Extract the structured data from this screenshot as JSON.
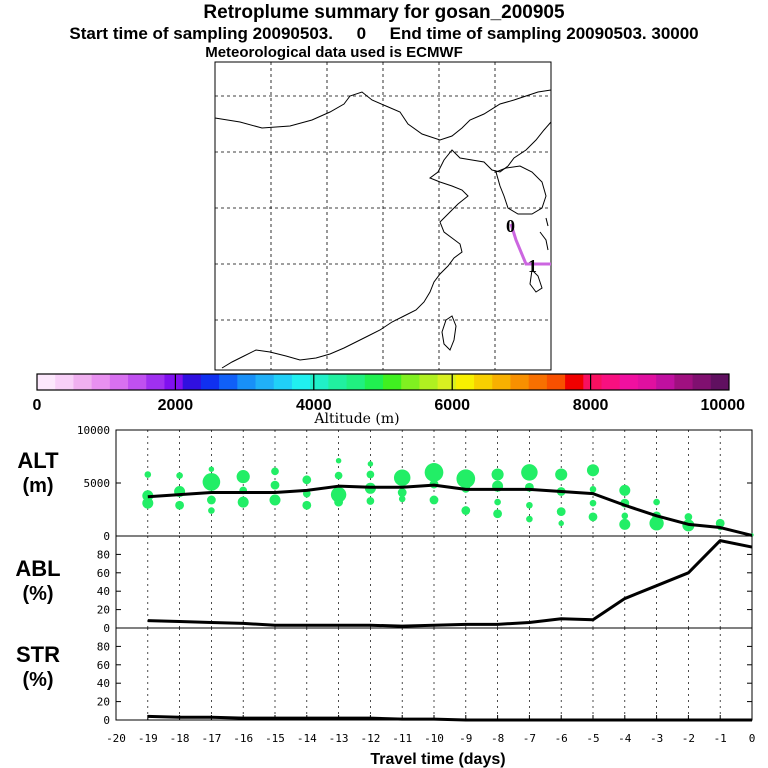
{
  "header": {
    "title": "Retroplume summary for gosan_200905",
    "sampling_line": "Start time of sampling 20090503.     0     End time of sampling 20090503. 30000",
    "met_line": "Meteorological data used is ECMWF"
  },
  "map": {
    "trajectory_labels": [
      "0",
      "1"
    ],
    "trajectory_color": "#cc66e0"
  },
  "colorbar": {
    "label": "Altitude (m)",
    "ticks": [
      "0",
      "2000",
      "4000",
      "6000",
      "8000",
      "10000"
    ],
    "colors": [
      "#fce8fc",
      "#f8d0f8",
      "#f0b0f0",
      "#e890f0",
      "#d870f0",
      "#c050f0",
      "#a030f0",
      "#8010f0",
      "#3010e0",
      "#1030f0",
      "#1060f8",
      "#1890f8",
      "#20b0f8",
      "#20d0f8",
      "#20f0f0",
      "#20f0c8",
      "#20f0a0",
      "#20f080",
      "#20f050",
      "#40f020",
      "#80f020",
      "#b0f020",
      "#d8f020",
      "#f8f000",
      "#f8d000",
      "#f8b000",
      "#f89000",
      "#f87000",
      "#f85000",
      "#f00000",
      "#f81060",
      "#f81080",
      "#f010a0",
      "#e010a0",
      "#c010a0",
      "#a01080",
      "#801070",
      "#601060"
    ]
  },
  "chart_data": [
    {
      "type": "line",
      "panel": "ALT",
      "ylabel": "ALT\n(m)",
      "ylabel_line1": "ALT",
      "ylabel_line2": "(m)",
      "ylim": [
        0,
        10000
      ],
      "yticks": [
        "0",
        "5000",
        "10000"
      ],
      "x": [
        -19,
        -18,
        -17,
        -16,
        -15,
        -14,
        -13,
        -12,
        -11,
        -10,
        -9,
        -8,
        -7,
        -6,
        -5,
        -4,
        -3,
        -2,
        -1,
        0
      ],
      "series": [
        {
          "name": "mean altitude",
          "values": [
            3700,
            3900,
            4100,
            4100,
            4100,
            4300,
            4700,
            4600,
            4600,
            4800,
            4400,
            4400,
            4400,
            4200,
            4000,
            2900,
            1900,
            1100,
            800,
            50
          ]
        }
      ],
      "scatter": {
        "color": "#22ee66",
        "points": [
          [
            -19,
            5800,
            0.6
          ],
          [
            -19,
            3800,
            1.0
          ],
          [
            -19,
            3100,
            1.0
          ],
          [
            -18,
            5700,
            0.6
          ],
          [
            -18,
            4200,
            1.0
          ],
          [
            -18,
            2900,
            0.8
          ],
          [
            -17,
            6300,
            0.5
          ],
          [
            -17,
            5100,
            1.6
          ],
          [
            -17,
            3400,
            0.8
          ],
          [
            -17,
            2400,
            0.6
          ],
          [
            -16,
            5600,
            1.2
          ],
          [
            -16,
            4300,
            0.7
          ],
          [
            -16,
            3200,
            1.0
          ],
          [
            -15,
            6100,
            0.7
          ],
          [
            -15,
            4800,
            0.8
          ],
          [
            -15,
            3400,
            1.0
          ],
          [
            -14,
            5300,
            0.8
          ],
          [
            -14,
            4000,
            0.7
          ],
          [
            -14,
            2900,
            0.8
          ],
          [
            -13,
            7100,
            0.5
          ],
          [
            -13,
            5700,
            0.7
          ],
          [
            -13,
            3900,
            1.4
          ],
          [
            -13,
            3200,
            0.8
          ],
          [
            -12,
            6800,
            0.5
          ],
          [
            -12,
            5800,
            0.7
          ],
          [
            -12,
            4500,
            1.0
          ],
          [
            -12,
            3300,
            0.7
          ],
          [
            -11,
            5500,
            1.5
          ],
          [
            -11,
            4100,
            0.8
          ],
          [
            -11,
            3500,
            0.6
          ],
          [
            -10,
            6000,
            1.7
          ],
          [
            -10,
            4900,
            0.8
          ],
          [
            -10,
            3400,
            0.8
          ],
          [
            -9,
            5400,
            1.7
          ],
          [
            -9,
            4500,
            0.8
          ],
          [
            -9,
            2400,
            0.8
          ],
          [
            -8,
            5800,
            1.1
          ],
          [
            -8,
            4700,
            1.0
          ],
          [
            -8,
            3200,
            0.6
          ],
          [
            -8,
            2100,
            0.8
          ],
          [
            -7,
            6000,
            1.5
          ],
          [
            -7,
            4600,
            0.8
          ],
          [
            -7,
            2900,
            0.6
          ],
          [
            -7,
            1600,
            0.6
          ],
          [
            -6,
            5800,
            1.1
          ],
          [
            -6,
            4200,
            0.8
          ],
          [
            -6,
            2300,
            0.8
          ],
          [
            -6,
            1200,
            0.5
          ],
          [
            -5,
            6200,
            1.1
          ],
          [
            -5,
            4400,
            0.6
          ],
          [
            -5,
            3100,
            0.6
          ],
          [
            -5,
            1800,
            0.8
          ],
          [
            -4,
            4300,
            1.0
          ],
          [
            -4,
            3100,
            0.8
          ],
          [
            -4,
            1900,
            0.6
          ],
          [
            -4,
            1100,
            1.0
          ],
          [
            -3,
            3200,
            0.6
          ],
          [
            -3,
            1900,
            0.8
          ],
          [
            -3,
            1200,
            1.3
          ],
          [
            -2,
            1800,
            0.7
          ],
          [
            -2,
            1000,
            1.1
          ],
          [
            -1,
            1200,
            0.8
          ],
          [
            -1,
            800,
            0.5
          ],
          [
            0,
            100,
            0.3
          ]
        ]
      }
    },
    {
      "type": "line",
      "panel": "ABL",
      "ylabel_line1": "ABL",
      "ylabel_line2": "(%)",
      "ylim": [
        0,
        100
      ],
      "yticks": [
        "0",
        "20",
        "40",
        "60",
        "80"
      ],
      "x": [
        -19,
        -18,
        -17,
        -16,
        -15,
        -14,
        -13,
        -12,
        -11,
        -10,
        -9,
        -8,
        -7,
        -6,
        -5,
        -4,
        -3,
        -2,
        -1,
        0
      ],
      "series": [
        {
          "name": "ABL fraction",
          "values": [
            8,
            7,
            6,
            5,
            3,
            3,
            3,
            3,
            2,
            3,
            4,
            4,
            6,
            10,
            9,
            32,
            46,
            60,
            95,
            88
          ]
        }
      ]
    },
    {
      "type": "line",
      "panel": "STR",
      "ylabel_line1": "STR",
      "ylabel_line2": "(%)",
      "ylim": [
        0,
        100
      ],
      "yticks": [
        "0",
        "20",
        "40",
        "60",
        "80"
      ],
      "x": [
        -19,
        -18,
        -17,
        -16,
        -15,
        -14,
        -13,
        -12,
        -11,
        -10,
        -9,
        -8,
        -7,
        -6,
        -5,
        -4,
        -3,
        -2,
        -1,
        0
      ],
      "series": [
        {
          "name": "stratosphere fraction",
          "values": [
            4,
            3,
            3,
            2,
            2,
            2,
            2,
            2,
            1,
            1,
            0,
            0,
            0,
            0,
            0,
            0,
            0,
            0,
            0,
            0
          ]
        }
      ]
    }
  ],
  "xaxis": {
    "label": "Travel time (days)",
    "xlim": [
      -20,
      0
    ],
    "ticks": [
      "-20",
      "-19",
      "-18",
      "-17",
      "-16",
      "-15",
      "-14",
      "-13",
      "-12",
      "-11",
      "-10",
      "-9",
      "-8",
      "-7",
      "-6",
      "-5",
      "-4",
      "-3",
      "-2",
      "-1",
      "0"
    ]
  }
}
